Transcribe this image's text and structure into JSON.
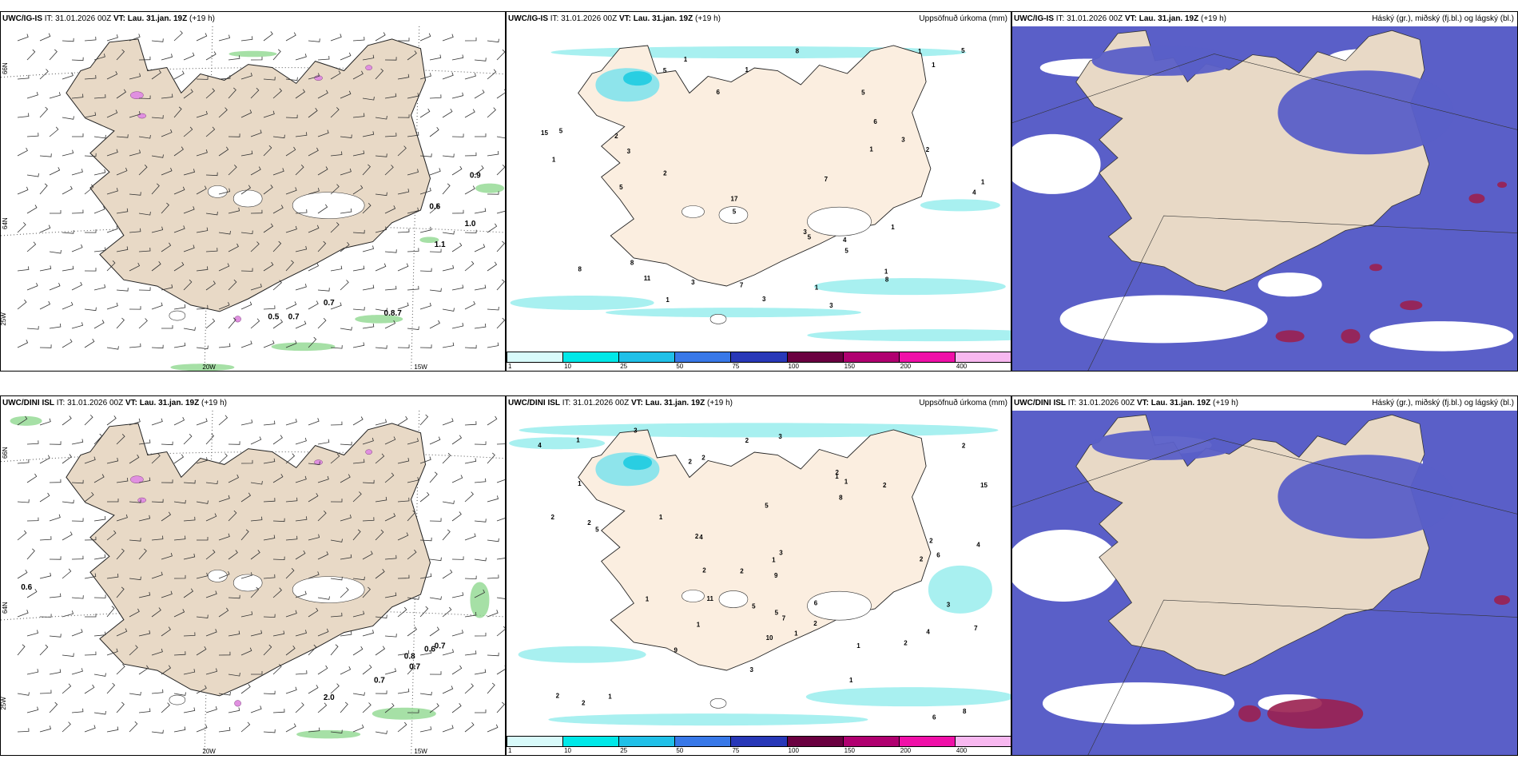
{
  "colors": {
    "land": "#e8d9c6",
    "land_light": "#fbeee0",
    "snowfree": "#ffffff",
    "precip_light": "#a8f0f0",
    "cloud_mid": "#5a5fc8",
    "cloud_mid_light": "#7a80dc",
    "cloud_high": "#9a2050",
    "green": "#90d890"
  },
  "rows": [
    {
      "model": "UWC/IG-IS",
      "it_label": "IT:",
      "it_value": "31.01.2026 00Z",
      "vt_label": "VT:",
      "vt_value": "Lau. 31.jan. 19Z",
      "lead": "(+19 h)",
      "panel2_title": "Uppsöfnuð úrkoma (mm)",
      "panel3_title": "Háský (gr.), miðský (fj.bl.) og lágský (bl.)",
      "lat_labels": [
        "66N",
        "64N"
      ],
      "lon_labels": [
        "25W",
        "20W",
        "15W"
      ],
      "wind_values": [
        "0.9",
        "0.6",
        "1.0",
        "1.1",
        "0.7",
        "0.5",
        "0.7",
        "0.8.7"
      ],
      "precip_values": [
        "3",
        "5",
        "8",
        "2",
        "3",
        "1",
        "4",
        "2",
        "5",
        "11",
        "8",
        "15",
        "17",
        "3",
        "1",
        "1",
        "1",
        "1",
        "1",
        "2",
        "1",
        "5",
        "1",
        "8",
        "7",
        "6",
        "5",
        "3",
        "3",
        "6",
        "5",
        "5",
        "5",
        "3",
        "1",
        "7",
        "8",
        "5",
        "1",
        "4",
        "1"
      ]
    },
    {
      "model": "UWC/DINI ISL",
      "it_label": "IT:",
      "it_value": "31.01.2026 00Z",
      "vt_label": "VT:",
      "vt_value": "Lau. 31.jan. 19Z",
      "lead": "(+19 h)",
      "panel2_title": "Uppsöfnuð úrkoma (mm)",
      "panel3_title": "Háský (gr.), miðský (fj.bl.) og lágský (bl.)",
      "lat_labels": [
        "66N",
        "64N"
      ],
      "lon_labels": [
        "25W",
        "20W",
        "15W"
      ],
      "wind_values": [
        "0.6",
        "0.8",
        "0.6",
        "0.7",
        "0.7",
        "0.7",
        "2.0"
      ],
      "precip_values": [
        "2",
        "2",
        "2",
        "3",
        "4",
        "7",
        "2",
        "11",
        "8",
        "5",
        "2",
        "2",
        "2",
        "2",
        "8",
        "4",
        "2",
        "1",
        "2",
        "2",
        "1",
        "3",
        "2",
        "1",
        "2",
        "1",
        "1",
        "1",
        "2",
        "1",
        "2",
        "1",
        "1",
        "1",
        "1",
        "4",
        "5",
        "3",
        "2",
        "10",
        "6",
        "9",
        "5",
        "4",
        "2",
        "3",
        "1",
        "7",
        "6",
        "15",
        "9",
        "6",
        "5",
        "3"
      ]
    }
  ],
  "colorbar": {
    "ticks": [
      "1",
      "10",
      "25",
      "50",
      "75",
      "100",
      "150",
      "200",
      "400"
    ],
    "colors": [
      "#d8fafa",
      "#00e8e8",
      "#20c0e8",
      "#3878e8",
      "#2838b8",
      "#6a0040",
      "#b00070",
      "#f010a8",
      "#f8b8f0"
    ]
  }
}
